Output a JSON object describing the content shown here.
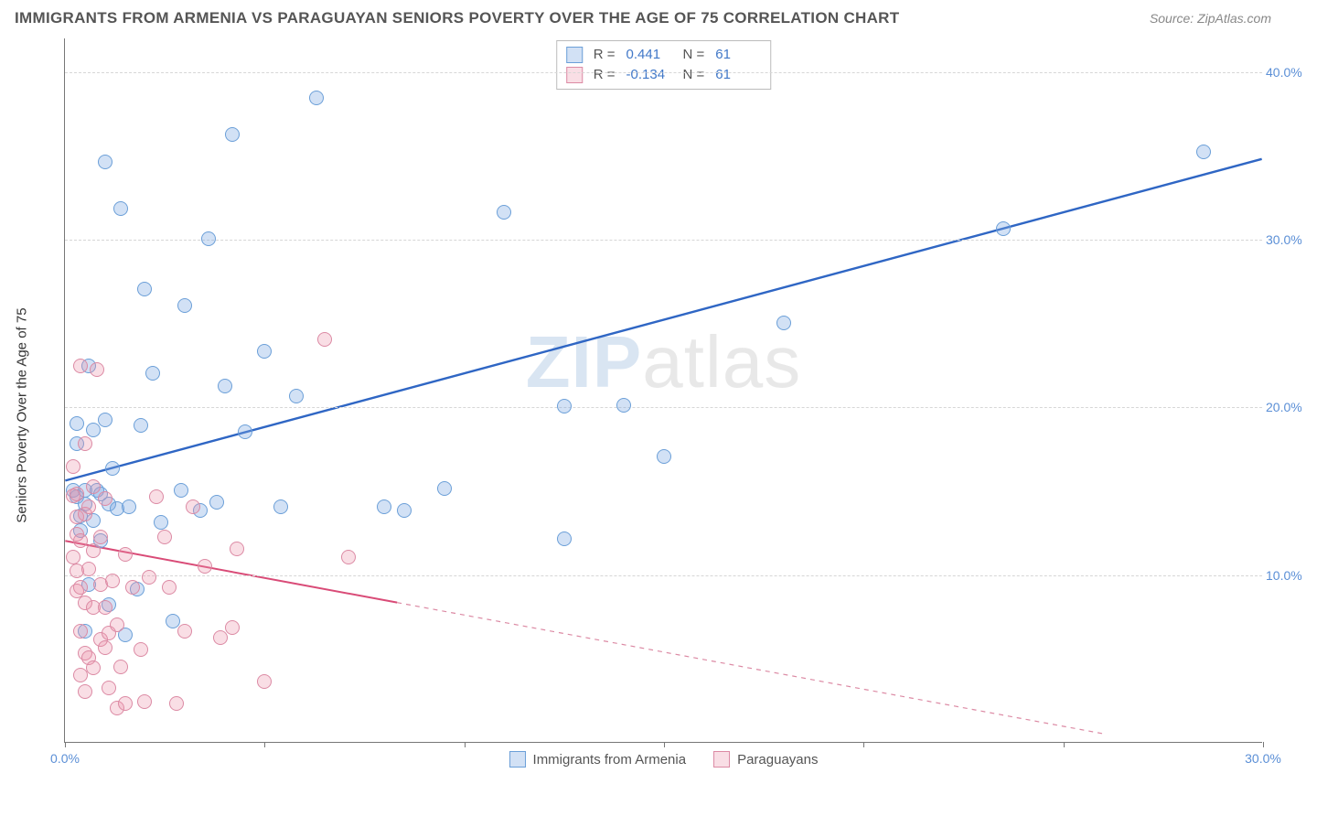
{
  "title": "IMMIGRANTS FROM ARMENIA VS PARAGUAYAN SENIORS POVERTY OVER THE AGE OF 75 CORRELATION CHART",
  "source_label": "Source:",
  "source_value": "ZipAtlas.com",
  "ylabel": "Seniors Poverty Over the Age of 75",
  "watermark_a": "ZIP",
  "watermark_b": "atlas",
  "chart": {
    "type": "scatter",
    "xlim": [
      0,
      30
    ],
    "ylim": [
      0,
      42
    ],
    "background_color": "#ffffff",
    "grid_color": "#d6d6d6",
    "axis_color": "#777777",
    "marker_radius": 8,
    "axis_label_color": "#5b8fd6",
    "yticks": [
      10,
      20,
      30,
      40
    ],
    "ytick_labels": [
      "10.0%",
      "20.0%",
      "30.0%",
      "40.0%"
    ],
    "xticks": [
      0,
      5,
      10,
      15,
      20,
      25,
      30
    ],
    "xtick_labels": {
      "0": "0.0%",
      "30": "30.0%"
    }
  },
  "series": [
    {
      "id": "armenia",
      "label": "Immigrants from Armenia",
      "fill_color": "rgba(125,170,225,0.35)",
      "stroke_color": "#6b9fd8",
      "line_color": "#2f66c4",
      "line_width": 2.4,
      "R": "0.441",
      "N": "61",
      "trend": {
        "x1": 0,
        "y1": 15.6,
        "x2": 30,
        "y2": 34.8,
        "solid_fraction": 1.0
      },
      "points": [
        [
          0.2,
          15.0
        ],
        [
          0.3,
          14.6
        ],
        [
          0.3,
          17.8
        ],
        [
          0.3,
          19.0
        ],
        [
          0.4,
          12.6
        ],
        [
          0.4,
          13.5
        ],
        [
          0.5,
          6.6
        ],
        [
          0.5,
          14.2
        ],
        [
          0.5,
          15.0
        ],
        [
          0.6,
          9.4
        ],
        [
          0.6,
          22.4
        ],
        [
          0.7,
          13.2
        ],
        [
          0.7,
          18.6
        ],
        [
          0.8,
          15.0
        ],
        [
          0.9,
          12.0
        ],
        [
          0.9,
          14.8
        ],
        [
          1.0,
          19.2
        ],
        [
          1.0,
          34.6
        ],
        [
          1.1,
          8.2
        ],
        [
          1.1,
          14.2
        ],
        [
          1.2,
          16.3
        ],
        [
          1.3,
          13.9
        ],
        [
          1.4,
          31.8
        ],
        [
          1.5,
          6.4
        ],
        [
          1.6,
          14.0
        ],
        [
          1.8,
          9.1
        ],
        [
          1.9,
          18.9
        ],
        [
          2.0,
          27.0
        ],
        [
          2.2,
          22.0
        ],
        [
          2.4,
          13.1
        ],
        [
          2.7,
          7.2
        ],
        [
          2.9,
          15.0
        ],
        [
          3.0,
          26.0
        ],
        [
          3.4,
          13.8
        ],
        [
          3.6,
          30.0
        ],
        [
          3.8,
          14.3
        ],
        [
          4.0,
          21.2
        ],
        [
          4.2,
          36.2
        ],
        [
          4.5,
          18.5
        ],
        [
          5.0,
          23.3
        ],
        [
          5.4,
          14.0
        ],
        [
          5.8,
          20.6
        ],
        [
          6.3,
          38.4
        ],
        [
          8.0,
          14.0
        ],
        [
          8.5,
          13.8
        ],
        [
          9.5,
          15.1
        ],
        [
          11.0,
          31.6
        ],
        [
          12.5,
          12.1
        ],
        [
          12.5,
          20.0
        ],
        [
          14.0,
          20.1
        ],
        [
          15.0,
          17.0
        ],
        [
          18.0,
          25.0
        ],
        [
          23.5,
          30.6
        ],
        [
          28.5,
          35.2
        ]
      ]
    },
    {
      "id": "paraguay",
      "label": "Paraguayans",
      "fill_color": "rgba(235,145,170,0.3)",
      "stroke_color": "#dc8aa4",
      "line_color": "#d94b77",
      "line_width": 2,
      "R": "-0.134",
      "N": "61",
      "trend": {
        "x1": 0,
        "y1": 12.0,
        "x2": 26,
        "y2": 0.5,
        "solid_fraction": 0.32
      },
      "points": [
        [
          0.2,
          14.7
        ],
        [
          0.2,
          16.4
        ],
        [
          0.2,
          11.0
        ],
        [
          0.3,
          9.0
        ],
        [
          0.3,
          10.2
        ],
        [
          0.3,
          12.4
        ],
        [
          0.3,
          13.4
        ],
        [
          0.3,
          14.8
        ],
        [
          0.4,
          4.0
        ],
        [
          0.4,
          6.6
        ],
        [
          0.4,
          9.2
        ],
        [
          0.4,
          12.0
        ],
        [
          0.4,
          22.4
        ],
        [
          0.5,
          3.0
        ],
        [
          0.5,
          5.3
        ],
        [
          0.5,
          8.3
        ],
        [
          0.5,
          13.6
        ],
        [
          0.5,
          17.8
        ],
        [
          0.6,
          5.0
        ],
        [
          0.6,
          10.3
        ],
        [
          0.6,
          14.0
        ],
        [
          0.7,
          4.4
        ],
        [
          0.7,
          8.0
        ],
        [
          0.7,
          11.4
        ],
        [
          0.7,
          15.2
        ],
        [
          0.8,
          22.2
        ],
        [
          0.9,
          6.1
        ],
        [
          0.9,
          9.4
        ],
        [
          0.9,
          12.2
        ],
        [
          1.0,
          5.6
        ],
        [
          1.0,
          8.0
        ],
        [
          1.0,
          14.5
        ],
        [
          1.1,
          3.2
        ],
        [
          1.1,
          6.5
        ],
        [
          1.2,
          9.6
        ],
        [
          1.3,
          2.0
        ],
        [
          1.3,
          7.0
        ],
        [
          1.4,
          4.5
        ],
        [
          1.5,
          2.3
        ],
        [
          1.5,
          11.2
        ],
        [
          1.7,
          9.2
        ],
        [
          1.9,
          5.5
        ],
        [
          2.0,
          2.4
        ],
        [
          2.1,
          9.8
        ],
        [
          2.3,
          14.6
        ],
        [
          2.5,
          12.2
        ],
        [
          2.6,
          9.2
        ],
        [
          2.8,
          2.3
        ],
        [
          3.0,
          6.6
        ],
        [
          3.2,
          14.0
        ],
        [
          3.5,
          10.5
        ],
        [
          3.9,
          6.2
        ],
        [
          4.2,
          6.8
        ],
        [
          4.3,
          11.5
        ],
        [
          5.0,
          3.6
        ],
        [
          6.5,
          24.0
        ],
        [
          7.1,
          11.0
        ]
      ]
    }
  ],
  "legend": {
    "r_key": "R =",
    "n_key": "N ="
  }
}
